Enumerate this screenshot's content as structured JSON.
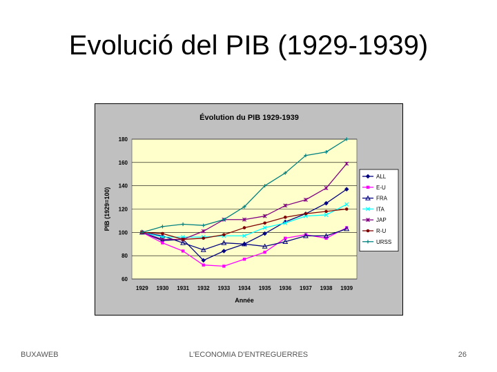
{
  "slide": {
    "title": "Evolució del PIB (1929-1939)",
    "footer_left": "BUXAWEB",
    "footer_center": "L'ECONOMIA D'ENTREGUERRES",
    "page_number": "26"
  },
  "chart_data": {
    "type": "line",
    "title": "Évolution du PIB 1929-1939",
    "xlabel": "Année",
    "ylabel": "PIB (1929=100)",
    "ylim": [
      60,
      180
    ],
    "yticks": [
      60,
      80,
      100,
      120,
      140,
      160,
      180
    ],
    "categories": [
      "1929",
      "1930",
      "1931",
      "1932",
      "1933",
      "1934",
      "1935",
      "1936",
      "1937",
      "1938",
      "1939"
    ],
    "grid": true,
    "legend": "right",
    "colors": {
      "plot_bg": "#ffffcc",
      "frame_bg": "#c0c0c0",
      "grid": "#000000"
    },
    "series": [
      {
        "name": "ALL",
        "color": "#000080",
        "marker": "diamond",
        "values": [
          100,
          93,
          94,
          76,
          84,
          90,
          99,
          109,
          116,
          125,
          137
        ]
      },
      {
        "name": "E-U",
        "color": "#ff00ff",
        "marker": "square",
        "values": [
          100,
          91,
          84,
          72,
          71,
          77,
          83,
          95,
          98,
          95,
          104
        ]
      },
      {
        "name": "FRA",
        "color": "#000080",
        "marker": "triangle",
        "values": [
          100,
          97,
          91,
          85,
          91,
          90,
          88,
          92,
          97,
          97,
          103
        ]
      },
      {
        "name": "ITA",
        "color": "#00ffff",
        "marker": "x",
        "values": [
          100,
          96,
          96,
          96,
          97,
          97,
          104,
          108,
          114,
          115,
          124
        ]
      },
      {
        "name": "JAP",
        "color": "#800080",
        "marker": "star",
        "values": [
          100,
          94,
          94,
          101,
          111,
          111,
          114,
          123,
          128,
          138,
          159
        ]
      },
      {
        "name": "R-U",
        "color": "#800000",
        "marker": "circle",
        "values": [
          100,
          99,
          94,
          95,
          98,
          104,
          108,
          113,
          116,
          118,
          120
        ]
      },
      {
        "name": "URSS",
        "color": "#008080",
        "marker": "plus",
        "values": [
          100,
          105,
          107,
          106,
          111,
          122,
          140,
          151,
          166,
          169,
          180
        ]
      }
    ]
  }
}
